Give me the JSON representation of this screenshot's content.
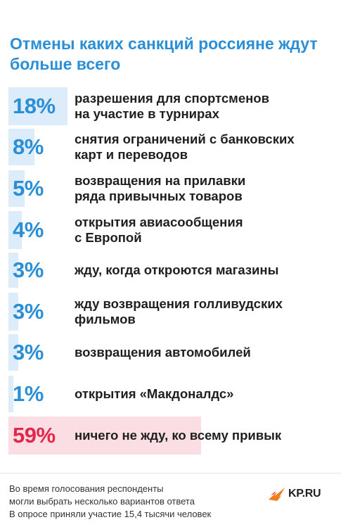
{
  "title": "Отмены каких санкций россияне ждут больше всего",
  "colors": {
    "title": "#2a8fd6",
    "bar": "#dcecfb",
    "bar_highlight": "#fbdde4",
    "value": "#2a8fd6",
    "value_highlight": "#e3264b"
  },
  "chart_data": {
    "type": "bar",
    "title": "Отмены каких санкций россияне ждут больше всего",
    "value_unit": "%",
    "categories": [
      "разрешения для спортсменов\nна участие в турнирах",
      "снятия ограничений с банковских\nкарт и переводов",
      "возвращения на прилавки\nряда привычных товаров",
      "открытия авиасообщения\nс Европой",
      "жду, когда откроются магазины",
      "жду возвращения голливудских\nфильмов",
      "возвращения автомобилей",
      "открытия «Макдоналдс»",
      "ничего не жду, ко всему привык"
    ],
    "values": [
      18,
      8,
      5,
      4,
      3,
      3,
      3,
      1,
      59
    ],
    "value_labels": [
      "18%",
      "8%",
      "5%",
      "4%",
      "3%",
      "3%",
      "3%",
      "1%",
      "59%"
    ],
    "highlight_index": 8,
    "xlim": [
      0,
      100
    ]
  },
  "footer": {
    "text": "Во время голосования респонденты\nмогли выбрать несколько вариантов ответа\nВ опросе приняли участие 15,4 тысячи человек"
  },
  "logo": {
    "text": "KP.RU",
    "icon": "kp-bird-icon"
  }
}
